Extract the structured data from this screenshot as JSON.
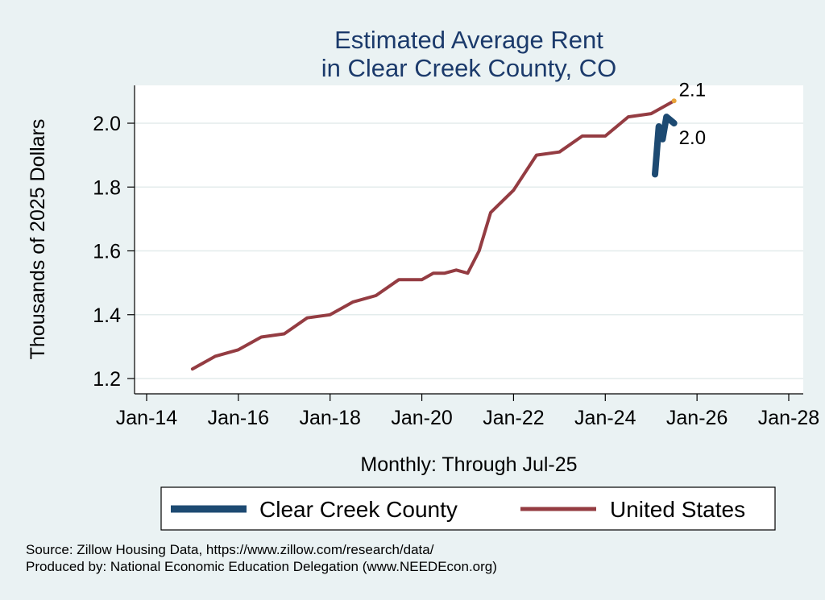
{
  "chart_data": {
    "type": "line",
    "title": [
      "Estimated Average Rent",
      "in Clear Creek County, CO"
    ],
    "xlabel": "Monthly: Through Jul-25",
    "ylabel": "Thousands of 2025 Dollars",
    "x_ticks": [
      "Jan-14",
      "Jan-16",
      "Jan-18",
      "Jan-20",
      "Jan-22",
      "Jan-24",
      "Jan-26",
      "Jan-28"
    ],
    "x_range": [
      "2014-01",
      "2028-01"
    ],
    "y_ticks": [
      "1.2",
      "1.4",
      "1.6",
      "1.8",
      "2.0"
    ],
    "ylim": [
      1.2,
      2.1
    ],
    "grid": true,
    "legend_position": "bottom",
    "series": [
      {
        "name": "Clear Creek County",
        "color": "#1d4a72",
        "end_label": "2.0",
        "points": [
          [
            "2025-02",
            1.84
          ],
          [
            "2025-03",
            1.99
          ],
          [
            "2025-04",
            1.95
          ],
          [
            "2025-05",
            2.02
          ],
          [
            "2025-06",
            2.01
          ],
          [
            "2025-07",
            2.0
          ]
        ]
      },
      {
        "name": "United States",
        "color": "#943c42",
        "end_label": "2.1",
        "points": [
          [
            "2015-01",
            1.23
          ],
          [
            "2015-07",
            1.27
          ],
          [
            "2016-01",
            1.29
          ],
          [
            "2016-07",
            1.33
          ],
          [
            "2017-01",
            1.34
          ],
          [
            "2017-07",
            1.39
          ],
          [
            "2018-01",
            1.4
          ],
          [
            "2018-07",
            1.44
          ],
          [
            "2019-01",
            1.46
          ],
          [
            "2019-07",
            1.51
          ],
          [
            "2020-01",
            1.51
          ],
          [
            "2020-04",
            1.53
          ],
          [
            "2020-07",
            1.53
          ],
          [
            "2020-10",
            1.54
          ],
          [
            "2021-01",
            1.53
          ],
          [
            "2021-04",
            1.6
          ],
          [
            "2021-07",
            1.72
          ],
          [
            "2022-01",
            1.79
          ],
          [
            "2022-07",
            1.9
          ],
          [
            "2023-01",
            1.91
          ],
          [
            "2023-07",
            1.96
          ],
          [
            "2024-01",
            1.96
          ],
          [
            "2024-07",
            2.02
          ],
          [
            "2025-01",
            2.03
          ],
          [
            "2025-07",
            2.07
          ]
        ]
      }
    ]
  },
  "source": {
    "line1": "Source: Zillow Housing Data, https://www.zillow.com/research/data/",
    "line2": "Produced by: National Economic Education Delegation (www.NEEDEcon.org)"
  }
}
